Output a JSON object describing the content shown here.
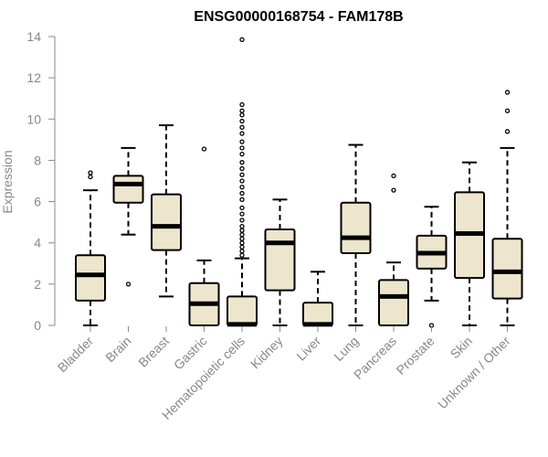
{
  "chart_data": {
    "type": "boxplot",
    "title": "ENSG00000168754 - FAM178B",
    "ylabel": "Expression",
    "xlabel": "",
    "ylim": [
      0,
      14
    ],
    "yticks": [
      0,
      2,
      4,
      6,
      8,
      10,
      12,
      14
    ],
    "box_color": "#ede5cc",
    "categories": [
      "Bladder",
      "Brain",
      "Breast",
      "Gastric",
      "Hematopoietic cells",
      "Kidney",
      "Liver",
      "Lung",
      "Pancreas",
      "Prostate",
      "Skin",
      "Unknown / Other"
    ],
    "boxes": [
      {
        "category": "Bladder",
        "whisker_low": 0.0,
        "q1": 1.2,
        "median": 2.45,
        "q3": 3.4,
        "whisker_high": 6.55,
        "outliers": [
          7.2,
          7.4
        ]
      },
      {
        "category": "Brain",
        "whisker_low": 4.4,
        "q1": 5.95,
        "median": 6.85,
        "q3": 7.25,
        "whisker_high": 8.6,
        "outliers": [
          2.0
        ]
      },
      {
        "category": "Breast",
        "whisker_low": 1.4,
        "q1": 3.65,
        "median": 4.8,
        "q3": 6.35,
        "whisker_high": 9.7,
        "outliers": []
      },
      {
        "category": "Gastric",
        "whisker_low": 0.0,
        "q1": 0.0,
        "median": 1.05,
        "q3": 2.05,
        "whisker_high": 3.15,
        "outliers": [
          8.55
        ]
      },
      {
        "category": "Hematopoietic cells",
        "whisker_low": 0.0,
        "q1": 0.0,
        "median": 0.05,
        "q3": 1.4,
        "whisker_high": 3.25,
        "outliers": [
          3.4,
          3.6,
          3.8,
          4.0,
          4.2,
          4.4,
          4.6,
          4.8,
          5.1,
          5.4,
          5.7,
          6.1,
          6.4,
          6.7,
          7.0,
          7.3,
          7.6,
          7.9,
          8.3,
          8.6,
          8.9,
          9.3,
          9.6,
          9.9,
          10.2,
          10.4,
          10.7,
          13.85
        ]
      },
      {
        "category": "Kidney",
        "whisker_low": 0.0,
        "q1": 1.7,
        "median": 4.0,
        "q3": 4.65,
        "whisker_high": 6.1,
        "outliers": []
      },
      {
        "category": "Liver",
        "whisker_low": 0.0,
        "q1": 0.0,
        "median": 0.05,
        "q3": 1.1,
        "whisker_high": 2.6,
        "outliers": []
      },
      {
        "category": "Lung",
        "whisker_low": 0.0,
        "q1": 3.5,
        "median": 4.25,
        "q3": 5.95,
        "whisker_high": 8.75,
        "outliers": []
      },
      {
        "category": "Pancreas",
        "whisker_low": 0.0,
        "q1": 0.0,
        "median": 1.4,
        "q3": 2.2,
        "whisker_high": 3.05,
        "outliers": [
          6.55,
          7.25
        ]
      },
      {
        "category": "Prostate",
        "whisker_low": 1.2,
        "q1": 2.75,
        "median": 3.5,
        "q3": 4.35,
        "whisker_high": 5.75,
        "outliers": [
          0.0
        ]
      },
      {
        "category": "Skin",
        "whisker_low": 0.0,
        "q1": 2.3,
        "median": 4.45,
        "q3": 6.45,
        "whisker_high": 7.9,
        "outliers": []
      },
      {
        "category": "Unknown / Other",
        "whisker_low": 0.0,
        "q1": 1.3,
        "median": 2.6,
        "q3": 4.2,
        "whisker_high": 8.6,
        "outliers": [
          9.4,
          10.4,
          11.3
        ]
      }
    ]
  }
}
